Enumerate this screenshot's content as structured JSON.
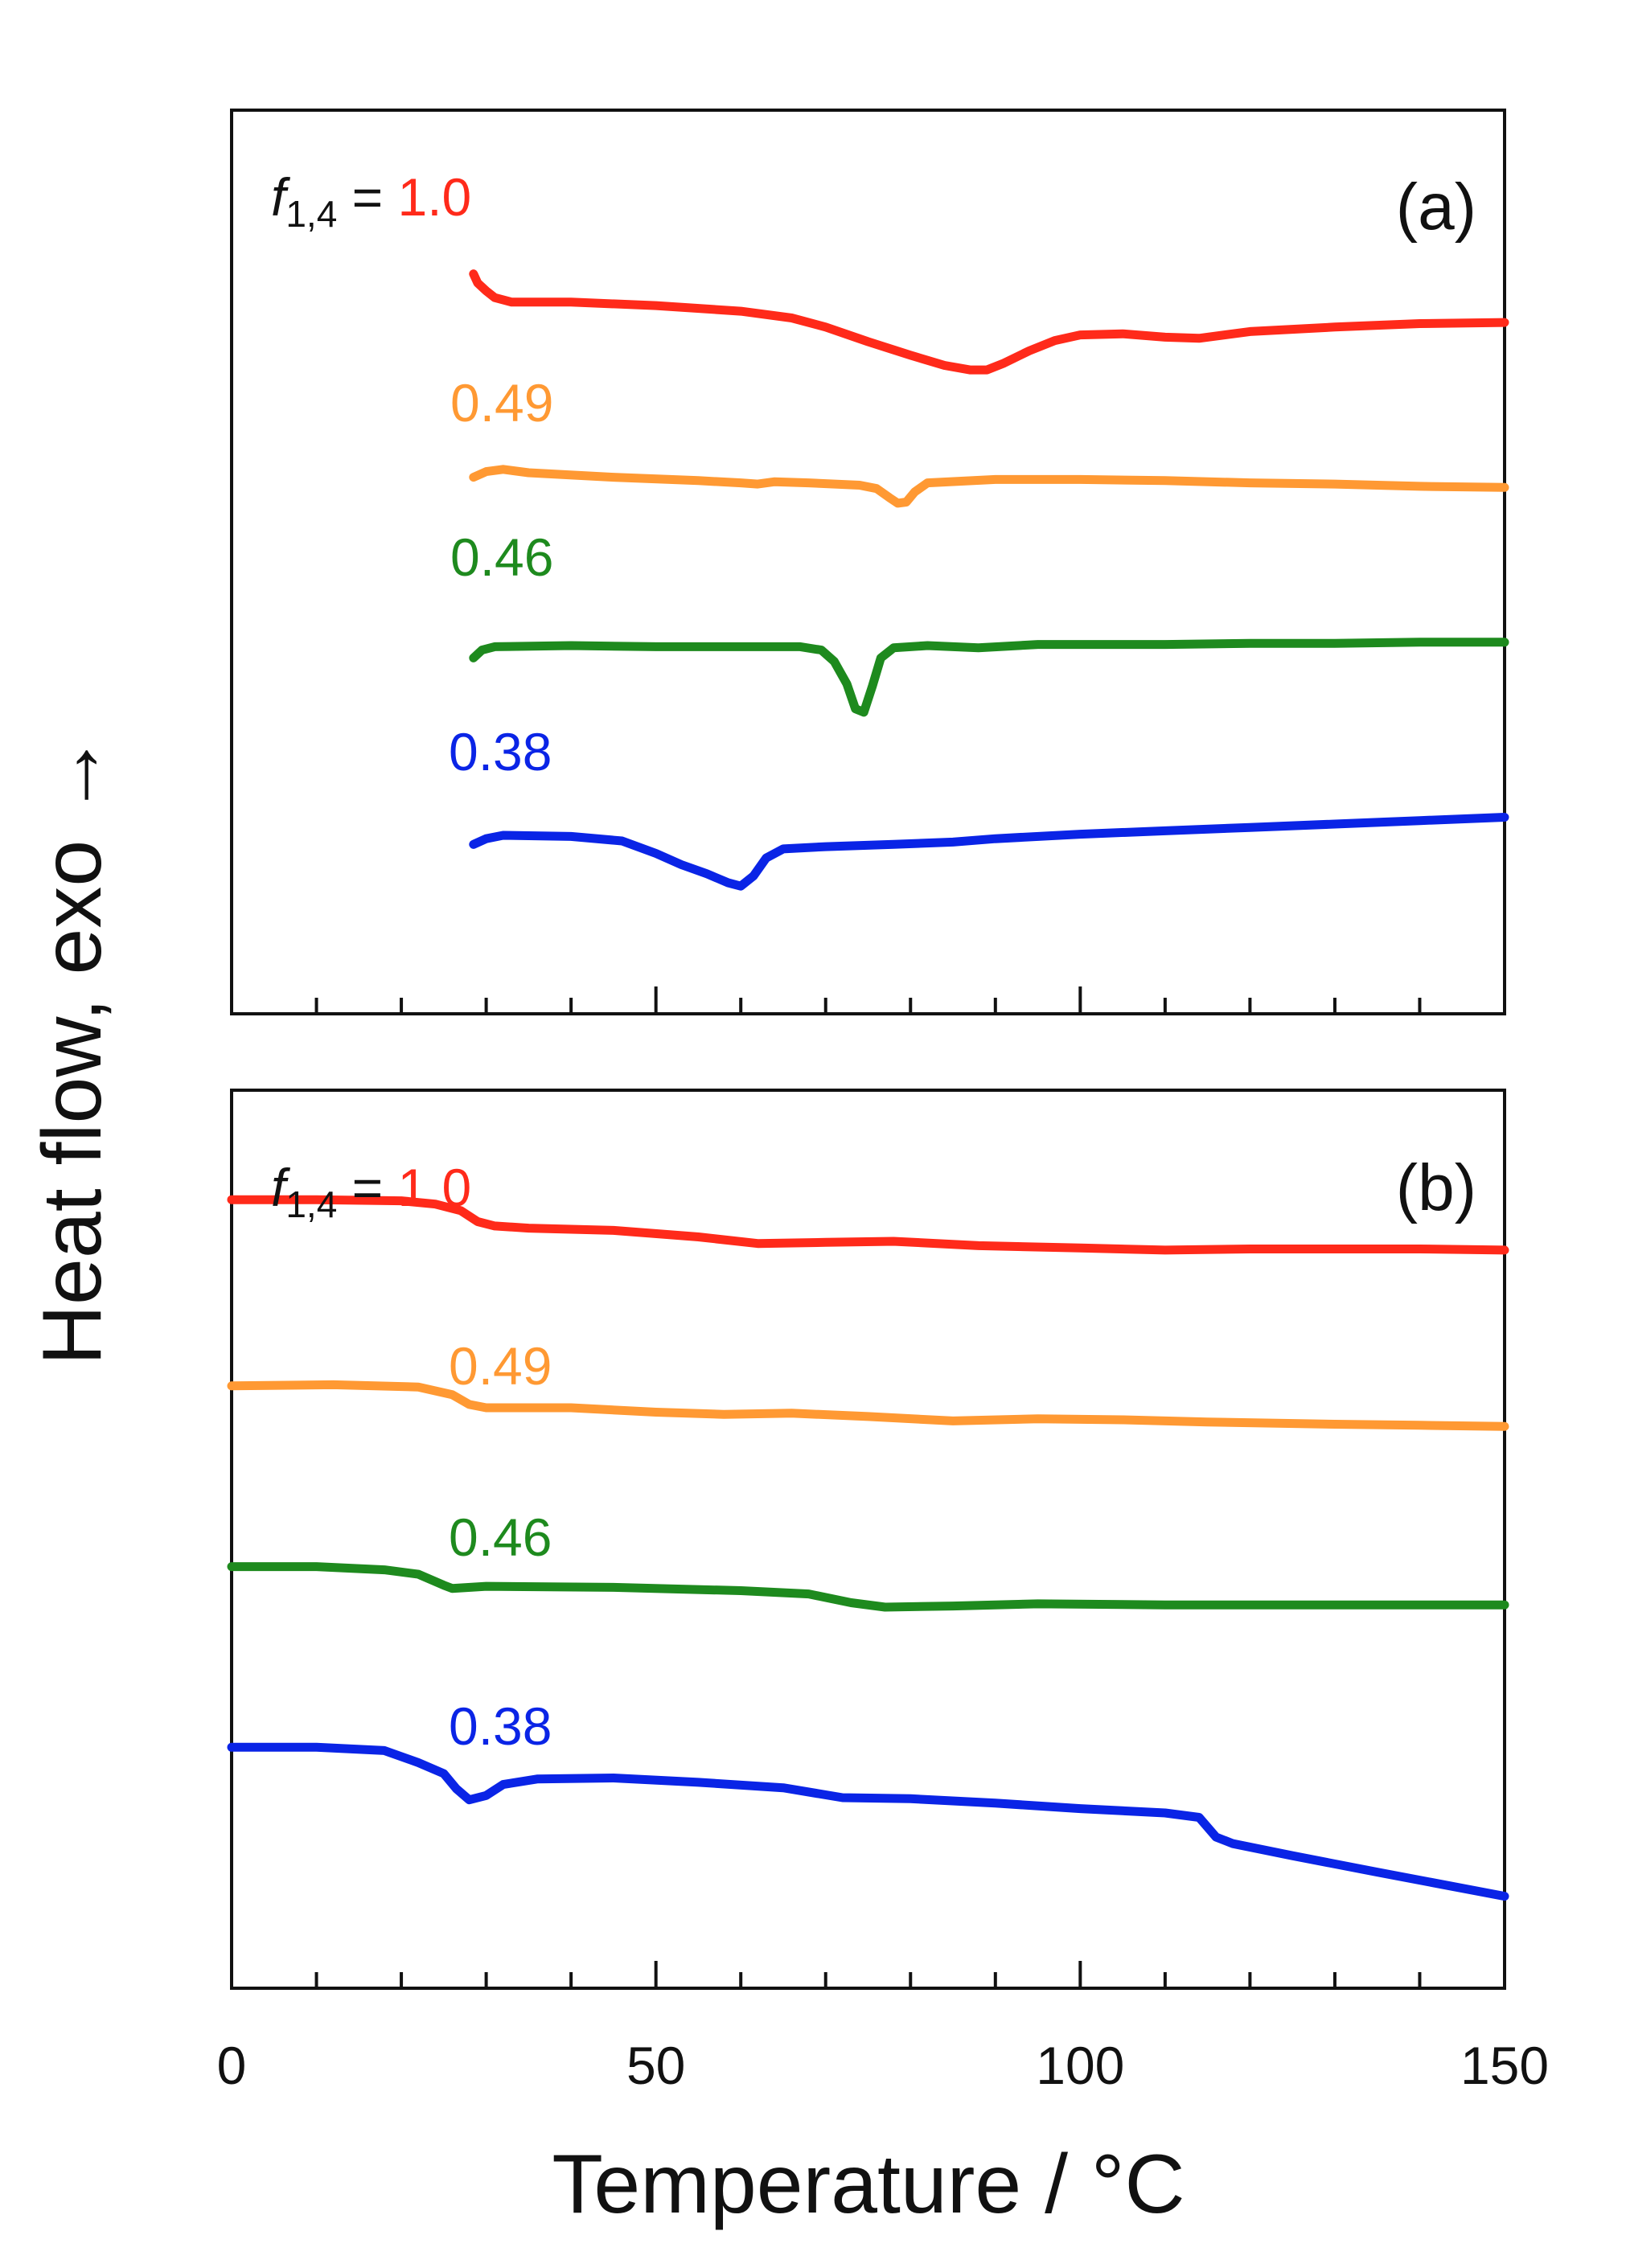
{
  "figure": {
    "ylabel": "Heat flow, exo →",
    "xlabel": "Temperature / °C",
    "x_tick_labels": [
      "0",
      "50",
      "100",
      "150"
    ]
  },
  "chart_data": [
    {
      "type": "line",
      "panel_label": "(a)",
      "title_prefix_f": "f",
      "title_prefix_sub": "1,4",
      "title_prefix_eq": " = ",
      "xlim": [
        0,
        150
      ],
      "x_major_ticks": [
        0,
        50,
        100,
        150
      ],
      "x_minor_step": 10,
      "xlabel": "Temperature / °C",
      "ylabel": "Heat flow, exo →",
      "y_axis_units": "arbitrary (offset)",
      "grid": false,
      "series": [
        {
          "name": "1.0",
          "color": "#ff2a1a",
          "points": [
            [
              28.5,
              8.55
            ],
            [
              29,
              8.47
            ],
            [
              30,
              8.4
            ],
            [
              31,
              8.34
            ],
            [
              33,
              8.3
            ],
            [
              40,
              8.3
            ],
            [
              50,
              8.27
            ],
            [
              60,
              8.22
            ],
            [
              66,
              8.16
            ],
            [
              70,
              8.08
            ],
            [
              75,
              7.95
            ],
            [
              80,
              7.83
            ],
            [
              84,
              7.74
            ],
            [
              87,
              7.7
            ],
            [
              89,
              7.7
            ],
            [
              91,
              7.76
            ],
            [
              94,
              7.87
            ],
            [
              97,
              7.96
            ],
            [
              100,
              8.01
            ],
            [
              105,
              8.02
            ],
            [
              110,
              7.99
            ],
            [
              114,
              7.98
            ],
            [
              120,
              8.04
            ],
            [
              130,
              8.08
            ],
            [
              140,
              8.11
            ],
            [
              150,
              8.12
            ]
          ]
        },
        {
          "name": "0.49",
          "color": "#ff9933",
          "points": [
            [
              28.5,
              6.75
            ],
            [
              30,
              6.8
            ],
            [
              32,
              6.82
            ],
            [
              35,
              6.79
            ],
            [
              45,
              6.75
            ],
            [
              55,
              6.72
            ],
            [
              60,
              6.7
            ],
            [
              62,
              6.69
            ],
            [
              64,
              6.71
            ],
            [
              68,
              6.7
            ],
            [
              74,
              6.68
            ],
            [
              76,
              6.65
            ],
            [
              77.5,
              6.57
            ],
            [
              78.5,
              6.52
            ],
            [
              79.5,
              6.53
            ],
            [
              80.5,
              6.62
            ],
            [
              82,
              6.7
            ],
            [
              90,
              6.73
            ],
            [
              100,
              6.73
            ],
            [
              110,
              6.72
            ],
            [
              120,
              6.7
            ],
            [
              130,
              6.69
            ],
            [
              140,
              6.67
            ],
            [
              150,
              6.66
            ]
          ]
        },
        {
          "name": "0.46",
          "color": "#1e8a1e",
          "points": [
            [
              28.5,
              5.15
            ],
            [
              29.5,
              5.22
            ],
            [
              31,
              5.25
            ],
            [
              40,
              5.26
            ],
            [
              50,
              5.25
            ],
            [
              60,
              5.25
            ],
            [
              67,
              5.25
            ],
            [
              69.5,
              5.22
            ],
            [
              71,
              5.12
            ],
            [
              72.5,
              4.92
            ],
            [
              73.5,
              4.7
            ],
            [
              74.5,
              4.67
            ],
            [
              75.5,
              4.9
            ],
            [
              76.5,
              5.15
            ],
            [
              78,
              5.24
            ],
            [
              82,
              5.26
            ],
            [
              88,
              5.24
            ],
            [
              95,
              5.27
            ],
            [
              100,
              5.27
            ],
            [
              110,
              5.27
            ],
            [
              120,
              5.28
            ],
            [
              130,
              5.28
            ],
            [
              140,
              5.29
            ],
            [
              150,
              5.29
            ]
          ]
        },
        {
          "name": "0.38",
          "color": "#0a24e6",
          "points": [
            [
              28.5,
              3.5
            ],
            [
              30,
              3.55
            ],
            [
              32,
              3.58
            ],
            [
              40,
              3.57
            ],
            [
              46,
              3.53
            ],
            [
              50,
              3.42
            ],
            [
              53,
              3.32
            ],
            [
              56,
              3.24
            ],
            [
              58.5,
              3.16
            ],
            [
              60,
              3.13
            ],
            [
              61.5,
              3.22
            ],
            [
              63,
              3.38
            ],
            [
              65,
              3.46
            ],
            [
              70,
              3.48
            ],
            [
              78,
              3.5
            ],
            [
              85,
              3.52
            ],
            [
              90,
              3.55
            ],
            [
              100,
              3.59
            ],
            [
              110,
              3.62
            ],
            [
              120,
              3.65
            ],
            [
              130,
              3.68
            ],
            [
              140,
              3.71
            ],
            [
              150,
              3.74
            ]
          ]
        }
      ],
      "annotations": [
        {
          "text": "0.49",
          "color": "#ff9933"
        },
        {
          "text": "0.46",
          "color": "#1e8a1e"
        },
        {
          "text": "0.38",
          "color": "#0a24e6"
        }
      ]
    },
    {
      "type": "line",
      "panel_label": "(b)",
      "title_prefix_f": "f",
      "title_prefix_sub": "1,4",
      "title_prefix_eq": " = ",
      "xlim": [
        0,
        150
      ],
      "x_major_ticks": [
        0,
        50,
        100,
        150
      ],
      "x_minor_step": 10,
      "xlabel": "Temperature / °C",
      "ylabel": "Heat flow, exo →",
      "y_axis_units": "arbitrary (offset)",
      "grid": false,
      "series": [
        {
          "name": "1.0",
          "color": "#ff2a1a",
          "points": [
            [
              0,
              8.2
            ],
            [
              10,
              8.2
            ],
            [
              20,
              8.19
            ],
            [
              24,
              8.16
            ],
            [
              27,
              8.1
            ],
            [
              29,
              8.0
            ],
            [
              31,
              7.96
            ],
            [
              35,
              7.94
            ],
            [
              45,
              7.92
            ],
            [
              55,
              7.86
            ],
            [
              62,
              7.8
            ],
            [
              70,
              7.81
            ],
            [
              78,
              7.82
            ],
            [
              88,
              7.78
            ],
            [
              100,
              7.76
            ],
            [
              110,
              7.74
            ],
            [
              120,
              7.75
            ],
            [
              130,
              7.75
            ],
            [
              140,
              7.75
            ],
            [
              150,
              7.74
            ]
          ]
        },
        {
          "name": "0.49",
          "color": "#ff9933",
          "points": [
            [
              0,
              6.5
            ],
            [
              12,
              6.51
            ],
            [
              22,
              6.49
            ],
            [
              26,
              6.42
            ],
            [
              28,
              6.33
            ],
            [
              30,
              6.3
            ],
            [
              40,
              6.3
            ],
            [
              50,
              6.26
            ],
            [
              58,
              6.24
            ],
            [
              66,
              6.25
            ],
            [
              75,
              6.22
            ],
            [
              85,
              6.18
            ],
            [
              95,
              6.2
            ],
            [
              105,
              6.19
            ],
            [
              115,
              6.17
            ],
            [
              130,
              6.15
            ],
            [
              140,
              6.14
            ],
            [
              150,
              6.13
            ]
          ]
        },
        {
          "name": "0.46",
          "color": "#1e8a1e",
          "points": [
            [
              0,
              4.85
            ],
            [
              10,
              4.85
            ],
            [
              18,
              4.82
            ],
            [
              22,
              4.78
            ],
            [
              25,
              4.68
            ],
            [
              26,
              4.65
            ],
            [
              30,
              4.67
            ],
            [
              45,
              4.66
            ],
            [
              60,
              4.63
            ],
            [
              68,
              4.6
            ],
            [
              73,
              4.52
            ],
            [
              77,
              4.48
            ],
            [
              85,
              4.49
            ],
            [
              95,
              4.51
            ],
            [
              110,
              4.5
            ],
            [
              130,
              4.5
            ],
            [
              150,
              4.5
            ]
          ]
        },
        {
          "name": "0.38",
          "color": "#0a24e6",
          "points": [
            [
              0,
              3.2
            ],
            [
              10,
              3.2
            ],
            [
              18,
              3.17
            ],
            [
              22,
              3.06
            ],
            [
              25,
              2.96
            ],
            [
              26.5,
              2.82
            ],
            [
              28,
              2.72
            ],
            [
              30,
              2.76
            ],
            [
              32,
              2.86
            ],
            [
              36,
              2.91
            ],
            [
              45,
              2.92
            ],
            [
              55,
              2.88
            ],
            [
              65,
              2.83
            ],
            [
              72,
              2.74
            ],
            [
              80,
              2.73
            ],
            [
              90,
              2.69
            ],
            [
              100,
              2.64
            ],
            [
              110,
              2.6
            ],
            [
              114,
              2.56
            ],
            [
              116,
              2.38
            ],
            [
              118,
              2.32
            ],
            [
              125,
              2.21
            ],
            [
              135,
              2.06
            ],
            [
              150,
              1.84
            ]
          ]
        }
      ],
      "annotations": [
        {
          "text": "0.49",
          "color": "#ff9933"
        },
        {
          "text": "0.46",
          "color": "#1e8a1e"
        },
        {
          "text": "0.38",
          "color": "#0a24e6"
        }
      ]
    }
  ]
}
